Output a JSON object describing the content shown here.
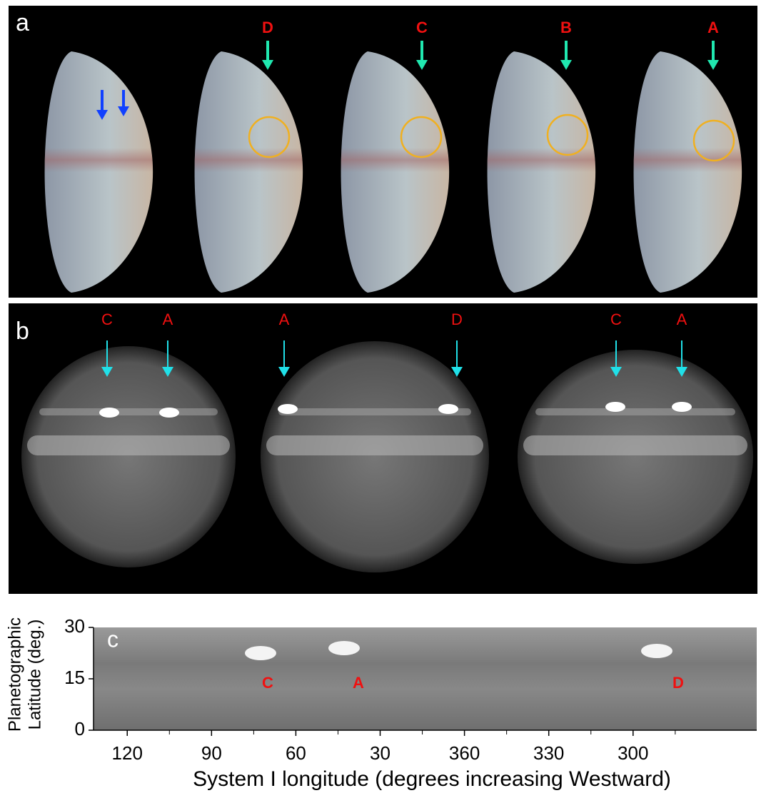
{
  "panel_a": {
    "label": "a",
    "markers": [
      "D",
      "C",
      "B",
      "A"
    ]
  },
  "panel_b": {
    "label": "b",
    "markers": [
      "C",
      "A",
      "A",
      "D",
      "C",
      "A"
    ]
  },
  "panel_c": {
    "label": "c",
    "features": [
      "C",
      "A",
      "D"
    ],
    "ylabel": [
      "Planetographic",
      "Latitude (deg.)"
    ],
    "xlabel": "System I longitude (degrees increasing Westward)",
    "xlim": [
      132,
      -104
    ],
    "ylim": [
      0,
      30
    ],
    "xticks": [
      120,
      90,
      60,
      30,
      {
        "value": 0,
        "label": "360"
      },
      {
        "value": -30,
        "label": "330"
      },
      {
        "value": -60,
        "label": "300"
      }
    ],
    "yticks": [
      0,
      15,
      30
    ]
  }
}
